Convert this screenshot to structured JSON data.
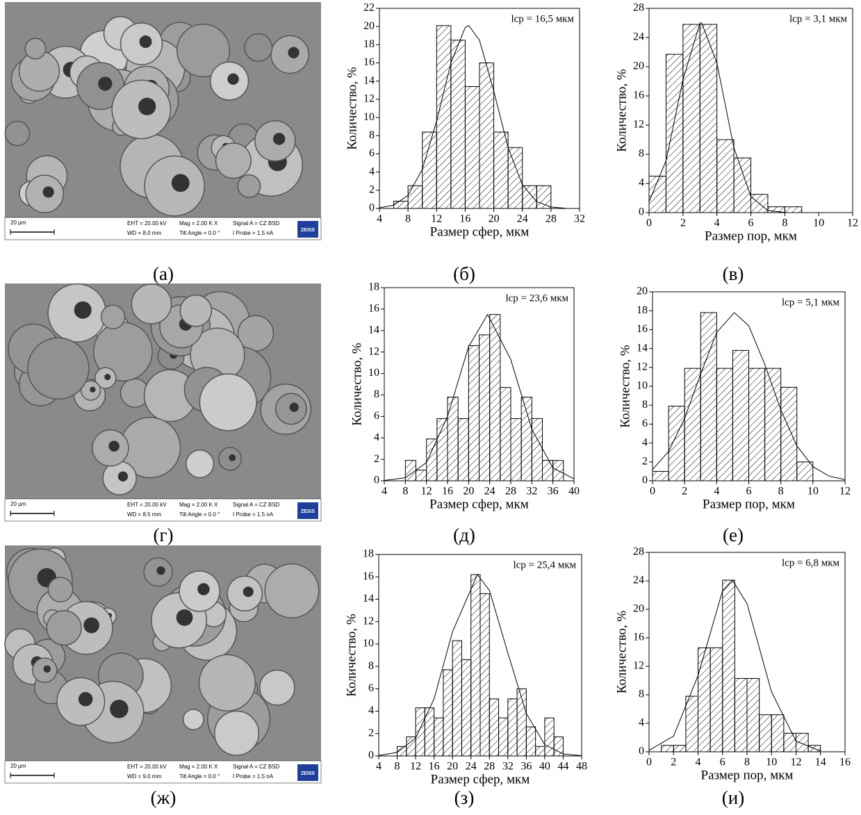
{
  "chart_data": [
    {
      "type": "histogram",
      "xlabel": "Размер сфер, мкм",
      "ylabel": "Количество, %",
      "annotation": "lср = 16,5 мкм",
      "color": "#000000",
      "bins": [
        6,
        8,
        10,
        12,
        14,
        16,
        18,
        20,
        22,
        24,
        26,
        28
      ],
      "values": [
        0.8,
        2.5,
        8.4,
        20.1,
        18.5,
        13.4,
        16,
        8.4,
        6.7,
        2.5,
        2.5
      ],
      "fit": {
        "x": [
          4,
          6,
          8,
          10,
          12,
          14,
          16,
          16.5,
          18,
          20,
          22,
          24,
          26,
          28,
          30
        ],
        "values": [
          0.07,
          0.36,
          1.44,
          4.3,
          9.6,
          16,
          19.9,
          20.1,
          18.5,
          12.9,
          6.7,
          2.6,
          0.75,
          0.16,
          0.02
        ]
      },
      "xlim": [
        4,
        32
      ],
      "xticks": [
        4,
        8,
        12,
        16,
        20,
        24,
        28,
        32
      ],
      "ylim": [
        0,
        22
      ],
      "yticks": [
        0,
        2,
        4,
        6,
        8,
        10,
        12,
        14,
        16,
        18,
        20,
        22
      ]
    },
    {
      "type": "histogram",
      "xlabel": "Размер пор, мкм",
      "ylabel": "Количество, %",
      "annotation": "lср = 3,1 мкм",
      "color": "#000000",
      "bins": [
        0,
        1,
        2,
        3,
        4,
        5,
        6,
        7,
        8,
        9
      ],
      "values": [
        5,
        21.7,
        25.8,
        25.8,
        10,
        7.5,
        2.5,
        0.8,
        0.8
      ],
      "fit": {
        "x": [
          0,
          1,
          2,
          3,
          3.1,
          4,
          5,
          6,
          7,
          8
        ],
        "values": [
          1.5,
          7.1,
          18.2,
          26,
          26,
          20.5,
          8.9,
          2.2,
          0.3,
          0.02
        ]
      },
      "xlim": [
        0,
        12
      ],
      "xticks": [
        0,
        2,
        4,
        6,
        8,
        10,
        12
      ],
      "ylim": [
        0,
        28
      ],
      "yticks": [
        0,
        4,
        8,
        12,
        16,
        20,
        24,
        28
      ]
    },
    {
      "type": "histogram",
      "xlabel": "Размер сфер, мкм",
      "ylabel": "Количество, %",
      "annotation": "lср = 23,6 мкм",
      "color": "#000000",
      "bins": [
        8,
        10,
        12,
        14,
        16,
        18,
        20,
        22,
        24,
        26,
        28,
        30,
        32,
        34,
        36,
        38
      ],
      "values": [
        1.9,
        1,
        3.9,
        5.8,
        7.8,
        5.8,
        12.6,
        13.6,
        15.5,
        8.7,
        5.8,
        7.8,
        5.8,
        1.9,
        1.9
      ],
      "fit": {
        "x": [
          4,
          8,
          12,
          16,
          20,
          23.6,
          28,
          32,
          36,
          40
        ],
        "values": [
          0.03,
          0.28,
          1.7,
          6,
          12.5,
          15.5,
          11.3,
          4.8,
          1.2,
          0.18
        ]
      },
      "xlim": [
        4,
        40
      ],
      "xticks": [
        4,
        8,
        12,
        16,
        20,
        24,
        28,
        32,
        36,
        40
      ],
      "ylim": [
        0,
        18
      ],
      "yticks": [
        0,
        2,
        4,
        6,
        8,
        10,
        12,
        14,
        16,
        18
      ]
    },
    {
      "type": "histogram",
      "xlabel": "Размер пор, мкм",
      "ylabel": "Количество, %",
      "annotation": "lср = 5,1 мкм",
      "color": "#000000",
      "bins": [
        0,
        1,
        2,
        3,
        4,
        5,
        6,
        7,
        8,
        9,
        10
      ],
      "values": [
        1,
        7.9,
        11.9,
        17.8,
        11.9,
        13.8,
        11.9,
        11.9,
        9.9,
        2
      ],
      "fit": {
        "x": [
          0,
          1,
          2,
          3,
          4,
          5.1,
          6,
          7,
          8,
          9,
          10,
          11,
          12
        ],
        "values": [
          1.2,
          3.1,
          6.6,
          11.3,
          15.7,
          17.8,
          16.4,
          12.3,
          7.5,
          3.7,
          1.5,
          0.5,
          0.13
        ]
      },
      "xlim": [
        0,
        12
      ],
      "xticks": [
        0,
        2,
        4,
        6,
        8,
        10,
        12
      ],
      "ylim": [
        0,
        20
      ],
      "yticks": [
        0,
        2,
        4,
        6,
        8,
        10,
        12,
        14,
        16,
        18,
        20
      ]
    },
    {
      "type": "histogram",
      "xlabel": "Размер сфер, мкм",
      "ylabel": "Количество, %",
      "annotation": "lср = 25,4 мкм",
      "color": "#000000",
      "bins": [
        8,
        10,
        12,
        14,
        16,
        18,
        20,
        22,
        24,
        26,
        28,
        30,
        32,
        34,
        36,
        38,
        40,
        42,
        44
      ],
      "values": [
        0.85,
        1.7,
        4.3,
        4.3,
        3.4,
        7.7,
        10.3,
        8.6,
        16.2,
        14.5,
        5.1,
        3.4,
        5.1,
        6,
        2.6,
        0.85,
        3.4,
        1.7
      ],
      "fit": {
        "x": [
          4,
          8,
          12,
          16,
          20,
          25.4,
          28,
          32,
          36,
          40,
          44,
          48
        ],
        "values": [
          0.04,
          0.32,
          1.6,
          5.1,
          11.1,
          16.2,
          14.8,
          9.2,
          3.8,
          1,
          0.18,
          0.02
        ]
      },
      "xlim": [
        4,
        48
      ],
      "xticks": [
        4,
        8,
        12,
        16,
        20,
        24,
        28,
        32,
        36,
        40,
        44,
        48
      ],
      "ylim": [
        0,
        18
      ],
      "yticks": [
        0,
        2,
        4,
        6,
        8,
        10,
        12,
        14,
        16,
        18
      ]
    },
    {
      "type": "histogram",
      "xlabel": "Размер пор, мкм",
      "ylabel": "Количество, %",
      "annotation": "lср = 6,8 мкм",
      "color": "#000000",
      "bins": [
        1,
        2,
        3,
        4,
        5,
        6,
        7,
        8,
        9,
        10,
        11,
        12,
        13,
        14
      ],
      "values": [
        0.9,
        0.9,
        7.8,
        14.6,
        14.6,
        24.1,
        10.3,
        10.3,
        5.2,
        5.2,
        2.6,
        2.6,
        0.9
      ],
      "fit": {
        "x": [
          0,
          2,
          4,
          6,
          6.8,
          8,
          10,
          12,
          14
        ],
        "values": [
          0.2,
          2.2,
          10.7,
          22.6,
          24.1,
          20.8,
          8.4,
          1.5,
          0.1
        ]
      },
      "xlim": [
        0,
        16
      ],
      "xticks": [
        0,
        2,
        4,
        6,
        8,
        10,
        12,
        14,
        16
      ],
      "ylim": [
        0,
        28
      ],
      "yticks": [
        0,
        4,
        8,
        12,
        16,
        20,
        24,
        28
      ]
    }
  ],
  "micrographs": [
    {
      "scale": "20 µm",
      "eht": "EHT = 20.00 kV",
      "wd": "WD = 8.0 mm",
      "mag": "Mag = 2.00 K X",
      "tilt": "Tilt Angle = 0.0 °",
      "signal": "Signal A = CZ BSD",
      "probe": "I Probe = 1.5 nA",
      "logo": "ZEISS"
    },
    {
      "scale": "20 µm",
      "eht": "EHT = 20.00 kV",
      "wd": "WD = 8.5 mm",
      "mag": "Mag = 2.00 K X",
      "tilt": "Tilt Angle = 0.0 °",
      "signal": "Signal A = CZ BSD",
      "probe": "I Probe = 1.5 nA",
      "logo": "ZEISS"
    },
    {
      "scale": "20 µm",
      "eht": "EHT = 20.00 kV",
      "wd": "WD = 9.0 mm",
      "mag": "Mag = 2.00 K X",
      "tilt": "Tilt Angle = 0.0 °",
      "signal": "Signal A = CZ BSD",
      "probe": "I Probe = 1.5 nA",
      "logo": "ZEISS"
    }
  ],
  "panel_labels": [
    "(а)",
    "(б)",
    "(в)",
    "(г)",
    "(д)",
    "(е)",
    "(ж)",
    "(з)",
    "(и)"
  ]
}
